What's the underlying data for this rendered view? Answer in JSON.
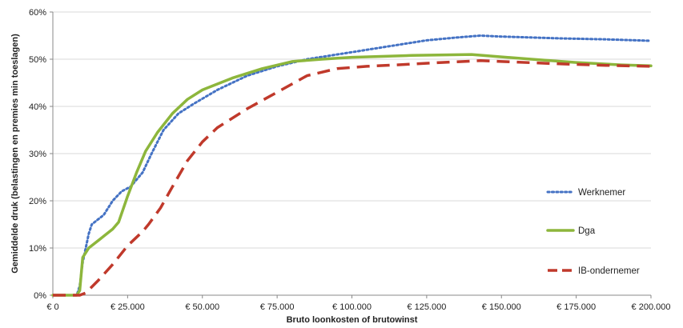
{
  "chart_data": {
    "type": "line",
    "title": "",
    "xlabel": "Bruto loonkosten of brutowinst",
    "ylabel": "Gemiddelde druk (belastingen en premies min toeslagen)",
    "xlim": [
      0,
      200000
    ],
    "ylim": [
      0,
      60
    ],
    "grid": true,
    "legend_position": "right",
    "x_tick_values": [
      0,
      25000,
      50000,
      75000,
      100000,
      125000,
      150000,
      175000,
      200000
    ],
    "x_tick_labels": [
      "€ 0",
      "€ 25.000",
      "€ 50.000",
      "€ 75.000",
      "€ 100.000",
      "€ 125.000",
      "€ 150.000",
      "€ 175.000",
      "€ 200.000"
    ],
    "y_tick_values": [
      0,
      10,
      20,
      30,
      40,
      50,
      60
    ],
    "y_tick_labels": [
      "0%",
      "10%",
      "20%",
      "30%",
      "40%",
      "50%",
      "60%"
    ],
    "series": [
      {
        "name": "Werknemer",
        "color": "#4472C4",
        "style": "dotted",
        "points": [
          [
            0,
            0
          ],
          [
            8000,
            0
          ],
          [
            9000,
            2
          ],
          [
            10000,
            7
          ],
          [
            11000,
            10
          ],
          [
            12000,
            13
          ],
          [
            13000,
            15
          ],
          [
            15000,
            16
          ],
          [
            17000,
            17
          ],
          [
            20000,
            20
          ],
          [
            23000,
            22
          ],
          [
            26000,
            23
          ],
          [
            30000,
            26
          ],
          [
            33000,
            30
          ],
          [
            37000,
            35
          ],
          [
            42000,
            38.5
          ],
          [
            47000,
            40.5
          ],
          [
            55000,
            43.5
          ],
          [
            65000,
            46.5
          ],
          [
            75000,
            48.5
          ],
          [
            85000,
            50
          ],
          [
            100000,
            51.5
          ],
          [
            115000,
            53
          ],
          [
            125000,
            54
          ],
          [
            135000,
            54.6
          ],
          [
            143000,
            55
          ],
          [
            150000,
            54.8
          ],
          [
            170000,
            54.4
          ],
          [
            185000,
            54.2
          ],
          [
            200000,
            53.9
          ]
        ]
      },
      {
        "name": "Dga",
        "color": "#8DB63C",
        "style": "solid",
        "points": [
          [
            0,
            0
          ],
          [
            8000,
            0
          ],
          [
            9000,
            1
          ],
          [
            10000,
            8
          ],
          [
            12000,
            10
          ],
          [
            14000,
            11
          ],
          [
            17000,
            12.5
          ],
          [
            20000,
            14
          ],
          [
            22000,
            15.5
          ],
          [
            25000,
            21
          ],
          [
            28000,
            26
          ],
          [
            31000,
            30.5
          ],
          [
            35000,
            34.5
          ],
          [
            40000,
            38.5
          ],
          [
            45000,
            41.5
          ],
          [
            50000,
            43.5
          ],
          [
            60000,
            46
          ],
          [
            70000,
            48
          ],
          [
            80000,
            49.5
          ],
          [
            90000,
            50
          ],
          [
            100000,
            50.4
          ],
          [
            120000,
            50.8
          ],
          [
            140000,
            51
          ],
          [
            150000,
            50.5
          ],
          [
            160000,
            50
          ],
          [
            175000,
            49.3
          ],
          [
            190000,
            48.8
          ],
          [
            200000,
            48.6
          ]
        ]
      },
      {
        "name": "IB-ondernemer",
        "color": "#C0392B",
        "style": "dashed",
        "points": [
          [
            0,
            0
          ],
          [
            9000,
            0
          ],
          [
            11000,
            0.5
          ],
          [
            15000,
            3
          ],
          [
            20000,
            6.5
          ],
          [
            25000,
            10.5
          ],
          [
            30000,
            13.5
          ],
          [
            32000,
            15
          ],
          [
            36000,
            18.5
          ],
          [
            40000,
            23
          ],
          [
            45000,
            28.5
          ],
          [
            50000,
            32.5
          ],
          [
            55000,
            35.5
          ],
          [
            65000,
            39.5
          ],
          [
            75000,
            43
          ],
          [
            85000,
            46.5
          ],
          [
            95000,
            48
          ],
          [
            105000,
            48.5
          ],
          [
            115000,
            48.8
          ],
          [
            130000,
            49.3
          ],
          [
            143000,
            49.7
          ],
          [
            150000,
            49.5
          ],
          [
            170000,
            49
          ],
          [
            185000,
            48.7
          ],
          [
            200000,
            48.5
          ]
        ]
      }
    ]
  }
}
